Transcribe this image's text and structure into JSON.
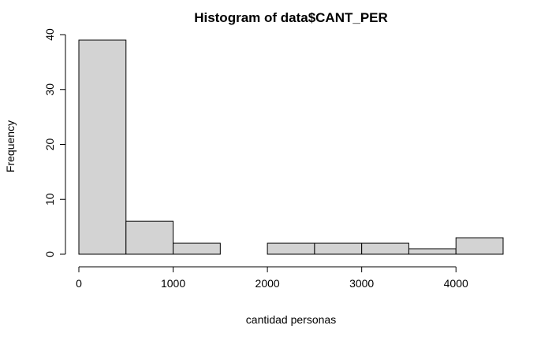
{
  "chart_data": {
    "type": "bar",
    "title": "Histogram of data$CANT_PER",
    "xlabel": "cantidad personas",
    "ylabel": "Frequency",
    "bins": [
      {
        "start": 0,
        "end": 500,
        "count": 39
      },
      {
        "start": 500,
        "end": 1000,
        "count": 6
      },
      {
        "start": 1000,
        "end": 1500,
        "count": 2
      },
      {
        "start": 1500,
        "end": 2000,
        "count": 0
      },
      {
        "start": 2000,
        "end": 2500,
        "count": 2
      },
      {
        "start": 2500,
        "end": 3000,
        "count": 2
      },
      {
        "start": 3000,
        "end": 3500,
        "count": 2
      },
      {
        "start": 3500,
        "end": 4000,
        "count": 1
      },
      {
        "start": 4000,
        "end": 4500,
        "count": 3
      }
    ],
    "xticks": [
      0,
      1000,
      2000,
      3000,
      4000
    ],
    "yticks": [
      0,
      10,
      20,
      30,
      40
    ],
    "xlim": [
      0,
      4500
    ],
    "ylim": [
      0,
      40
    ],
    "bar_color": "#d3d3d3",
    "grid": false,
    "legend": "none"
  }
}
